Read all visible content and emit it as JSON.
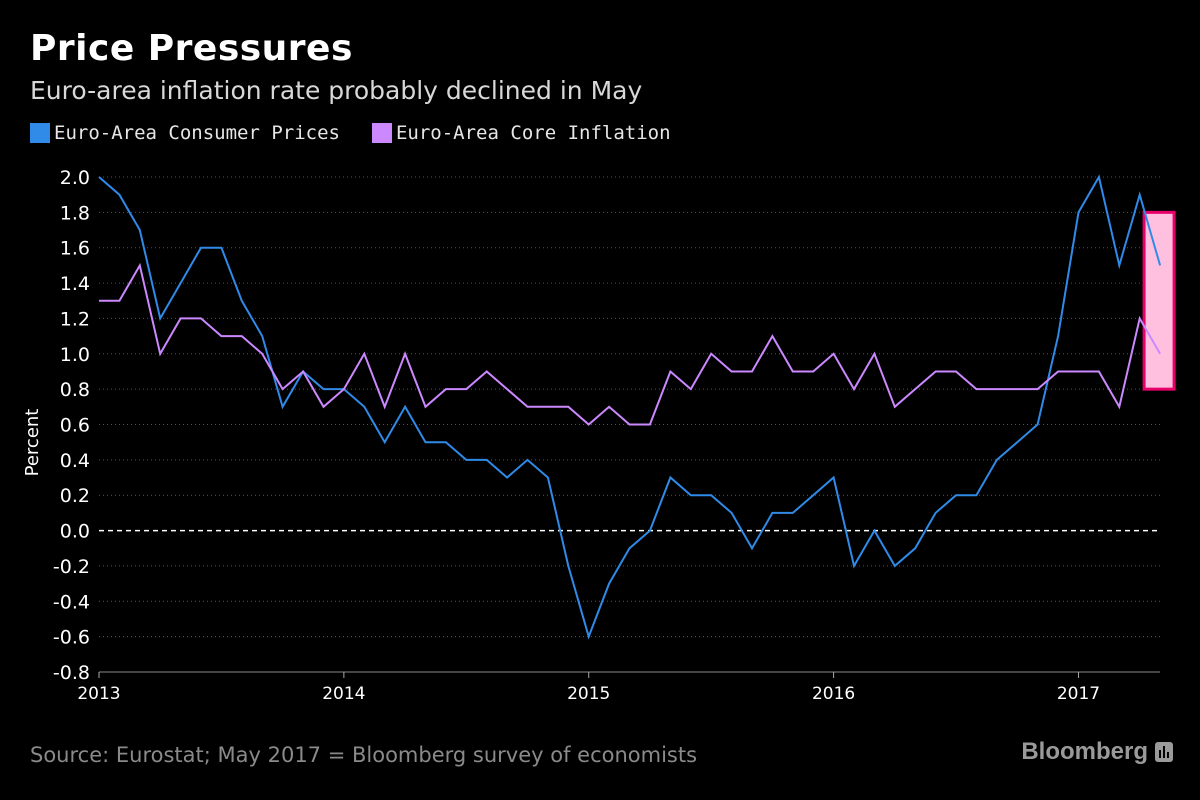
{
  "header": {
    "title": "Price Pressures",
    "subtitle": "Euro-area inflation rate probably declined in May"
  },
  "legend": [
    {
      "label": "Euro-Area Consumer Prices",
      "color": "#2f8ae8"
    },
    {
      "label": "Euro-Area Core Inflation",
      "color": "#cc88ff"
    }
  ],
  "footer": {
    "source": "Source: Eurostat; May 2017 = Bloomberg survey of economists",
    "brand": "Bloomberg"
  },
  "colors": {
    "background": "#000000",
    "consumer_prices": "#2f8ae8",
    "core_inflation": "#cc88ff",
    "forecast_fill": "#ffc0e0",
    "forecast_border": "#e8006a"
  },
  "chart_data": {
    "type": "line",
    "ylabel": "Percent",
    "ylim": [
      -0.8,
      2.0
    ],
    "yticks": [
      "2.0",
      "1.8",
      "1.6",
      "1.4",
      "1.2",
      "1.0",
      "0.8",
      "0.6",
      "0.4",
      "0.2",
      "0.0",
      "-0.2",
      "-0.4",
      "-0.6",
      "-0.8"
    ],
    "xticks": [
      "2013",
      "2014",
      "2015",
      "2016",
      "2017"
    ],
    "x_start": "2013-01",
    "x_end": "2017-05",
    "zero_line": "dashed",
    "grid": "horizontal dotted",
    "series": [
      {
        "name": "Euro-Area Consumer Prices",
        "color": "#2f8ae8",
        "values": [
          2.0,
          1.9,
          1.7,
          1.2,
          1.4,
          1.6,
          1.6,
          1.3,
          1.1,
          0.7,
          0.9,
          0.8,
          0.8,
          0.7,
          0.5,
          0.7,
          0.5,
          0.5,
          0.4,
          0.4,
          0.3,
          0.4,
          0.3,
          -0.2,
          -0.6,
          -0.3,
          -0.1,
          0.0,
          0.3,
          0.2,
          0.2,
          0.1,
          -0.1,
          0.1,
          0.1,
          0.2,
          0.3,
          -0.2,
          0.0,
          -0.2,
          -0.1,
          0.1,
          0.2,
          0.2,
          0.4,
          0.5,
          0.6,
          1.1,
          1.8,
          2.0,
          1.5,
          1.9,
          1.5
        ]
      },
      {
        "name": "Euro-Area Core Inflation",
        "color": "#cc88ff",
        "values": [
          1.3,
          1.3,
          1.5,
          1.0,
          1.2,
          1.2,
          1.1,
          1.1,
          1.0,
          0.8,
          0.9,
          0.7,
          0.8,
          1.0,
          0.7,
          1.0,
          0.7,
          0.8,
          0.8,
          0.9,
          0.8,
          0.7,
          0.7,
          0.7,
          0.6,
          0.7,
          0.6,
          0.6,
          0.9,
          0.8,
          1.0,
          0.9,
          0.9,
          1.1,
          0.9,
          0.9,
          1.0,
          0.8,
          1.0,
          0.7,
          0.8,
          0.9,
          0.9,
          0.8,
          0.8,
          0.8,
          0.8,
          0.9,
          0.9,
          0.9,
          0.7,
          1.2,
          1.0
        ]
      }
    ],
    "forecast": {
      "month": "2017-05",
      "ymin": 0.8,
      "ymax": 1.8
    }
  }
}
